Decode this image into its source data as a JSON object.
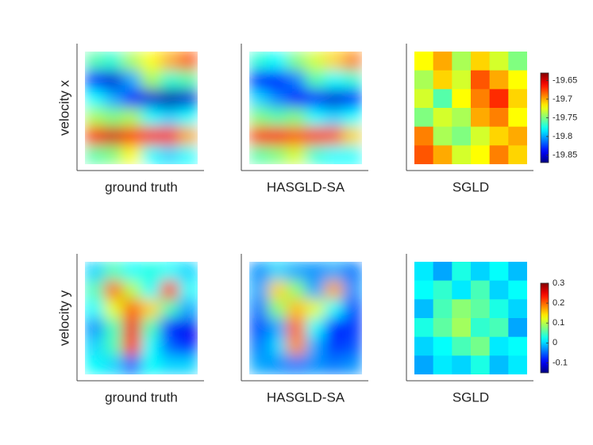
{
  "chart_data": [
    {
      "type": "heatmap",
      "ylabel": "velocity x",
      "clim": [
        -19.87,
        -19.63
      ],
      "colorbar_ticks": [
        -19.65,
        -19.7,
        -19.75,
        -19.8,
        -19.85
      ],
      "panels": [
        {
          "title": "ground truth",
          "z": [
            [
              -19.76,
              -19.77,
              -19.74,
              -19.72,
              -19.7,
              -19.68
            ],
            [
              -19.84,
              -19.85,
              -19.8,
              -19.74,
              -19.77,
              -19.76
            ],
            [
              -19.78,
              -19.8,
              -19.84,
              -19.85,
              -19.86,
              -19.85
            ],
            [
              -19.74,
              -19.75,
              -19.74,
              -19.78,
              -19.79,
              -19.78
            ],
            [
              -19.66,
              -19.65,
              -19.67,
              -19.66,
              -19.67,
              -19.7
            ],
            [
              -19.76,
              -19.75,
              -19.72,
              -19.78,
              -19.79,
              -19.78
            ]
          ]
        },
        {
          "title": "HASGLD-SA",
          "z": [
            [
              -19.77,
              -19.78,
              -19.75,
              -19.73,
              -19.71,
              -19.69
            ],
            [
              -19.84,
              -19.84,
              -19.81,
              -19.76,
              -19.78,
              -19.77
            ],
            [
              -19.79,
              -19.81,
              -19.84,
              -19.84,
              -19.85,
              -19.84
            ],
            [
              -19.75,
              -19.76,
              -19.75,
              -19.78,
              -19.79,
              -19.78
            ],
            [
              -19.67,
              -19.66,
              -19.68,
              -19.67,
              -19.68,
              -19.71
            ],
            [
              -19.76,
              -19.75,
              -19.73,
              -19.77,
              -19.78,
              -19.78
            ]
          ]
        },
        {
          "title": "SGLD",
          "z": [
            [
              -19.72,
              -19.7,
              -19.74,
              -19.71,
              -19.73,
              -19.75
            ],
            [
              -19.74,
              -19.71,
              -19.73,
              -19.68,
              -19.7,
              -19.72
            ],
            [
              -19.73,
              -19.76,
              -19.72,
              -19.69,
              -19.67,
              -19.71
            ],
            [
              -19.75,
              -19.73,
              -19.74,
              -19.7,
              -19.69,
              -19.72
            ],
            [
              -19.69,
              -19.74,
              -19.75,
              -19.73,
              -19.71,
              -19.7
            ],
            [
              -19.68,
              -19.7,
              -19.73,
              -19.72,
              -19.69,
              -19.71
            ]
          ]
        }
      ]
    },
    {
      "type": "heatmap",
      "ylabel": "velocity y",
      "clim": [
        -0.15,
        0.3
      ],
      "colorbar_ticks": [
        0.3,
        0.2,
        0.1,
        0,
        -0.1
      ],
      "panels": [
        {
          "title": "ground truth",
          "z": [
            [
              0,
              0.05,
              0.02,
              0.03,
              0.02,
              0
            ],
            [
              0.05,
              0.2,
              0.1,
              0.02,
              0.22,
              0.02
            ],
            [
              0.02,
              0.12,
              0.2,
              0.15,
              0.05,
              -0.02
            ],
            [
              -0.03,
              0.05,
              0.25,
              0.05,
              -0.08,
              -0.1
            ],
            [
              0,
              0.05,
              0.24,
              0.02,
              -0.05,
              -0.08
            ],
            [
              0.02,
              0,
              -0.05,
              0.02,
              0,
              0
            ]
          ]
        },
        {
          "title": "HASGLD-SA",
          "z": [
            [
              -0.03,
              0,
              -0.02,
              -0.03,
              -0.02,
              -0.04
            ],
            [
              -0.02,
              0.15,
              0.08,
              -0.02,
              0.17,
              -0.03
            ],
            [
              -0.04,
              0.08,
              0.16,
              0.12,
              0.02,
              -0.06
            ],
            [
              -0.06,
              -0.02,
              0.2,
              0.02,
              -0.08,
              -0.07
            ],
            [
              -0.04,
              0,
              0.18,
              -0.02,
              -0.07,
              -0.06
            ],
            [
              -0.02,
              -0.03,
              -0.04,
              -0.03,
              -0.04,
              -0.03
            ]
          ]
        },
        {
          "title": "SGLD",
          "z": [
            [
              0.01,
              -0.02,
              0.03,
              0,
              0.02,
              -0.01
            ],
            [
              0.02,
              0.04,
              0.01,
              0.05,
              0,
              0.02
            ],
            [
              -0.01,
              0.05,
              0.08,
              0.06,
              0.03,
              0
            ],
            [
              0.03,
              0.06,
              0.09,
              0.04,
              0.05,
              -0.02
            ],
            [
              0,
              0.02,
              0.05,
              0.07,
              0.01,
              0.02
            ],
            [
              -0.02,
              0.01,
              0,
              0.03,
              -0.01,
              0.01
            ]
          ]
        }
      ]
    }
  ]
}
